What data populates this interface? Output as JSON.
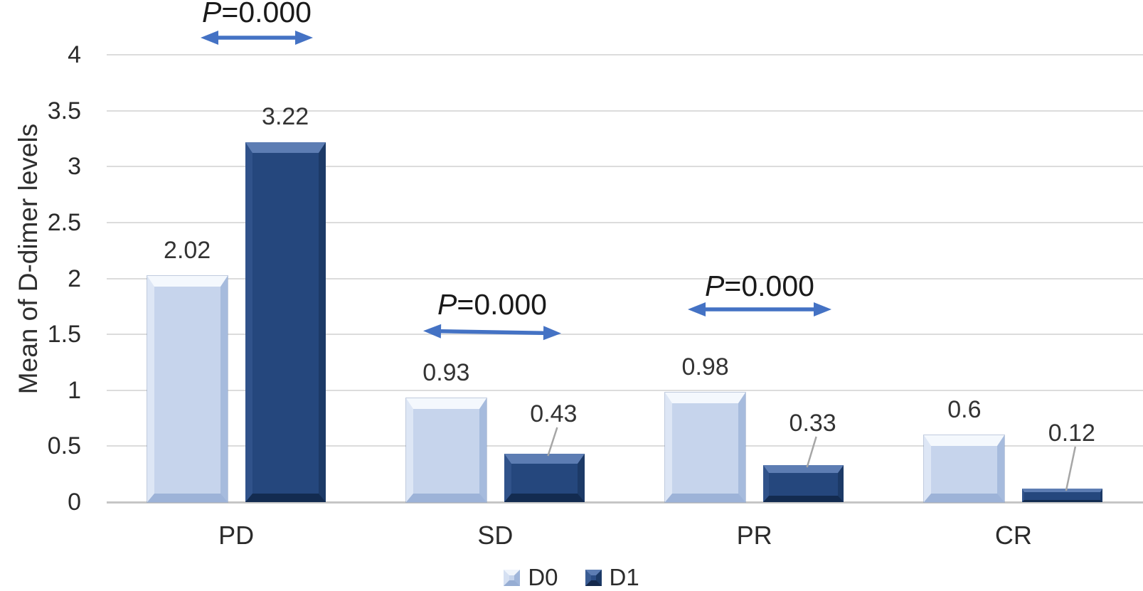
{
  "chart_data": {
    "type": "bar",
    "title": "",
    "categories": [
      "PD",
      "SD",
      "PR",
      "CR"
    ],
    "series": [
      {
        "name": "D0",
        "color": "#c6d4ec",
        "values": [
          2.02,
          0.93,
          0.98,
          0.6
        ],
        "labels": [
          "2.02",
          "0.93",
          "0.98",
          "0.6"
        ]
      },
      {
        "name": "D1",
        "color": "#25477d",
        "values": [
          3.22,
          0.43,
          0.33,
          0.12
        ],
        "labels": [
          "3.22",
          "0.43",
          "0.33",
          "0.12"
        ],
        "labels_with_leader_line": [
          false,
          true,
          true,
          true
        ]
      }
    ],
    "xlabel": "",
    "ylabel": "Mean of D-dimer levels",
    "ylim": [
      0,
      4
    ],
    "ytick_labels": [
      "4",
      "3.5",
      "3",
      "2.5",
      "2",
      "1.5",
      "1",
      "0.5",
      "0"
    ],
    "grid": true,
    "legend": {
      "position": "bottom-center",
      "entries": [
        "D0",
        "D1"
      ]
    },
    "annotations": [
      {
        "text": "P=0.000",
        "over_category": "PD"
      },
      {
        "text": "P=0.000",
        "over_category": "SD"
      },
      {
        "text": "P=0.000",
        "over_category": "PR"
      }
    ]
  },
  "colors": {
    "series_d0": "#c6d4ec",
    "series_d1": "#25477d",
    "arrow_blue": "#4472c4",
    "gridline": "#dcdcdc",
    "axis_line": "#c6c6c6",
    "leader_line": "#a6a6a6",
    "tick_text": "#2b2b2b",
    "background": "#ffffff"
  }
}
